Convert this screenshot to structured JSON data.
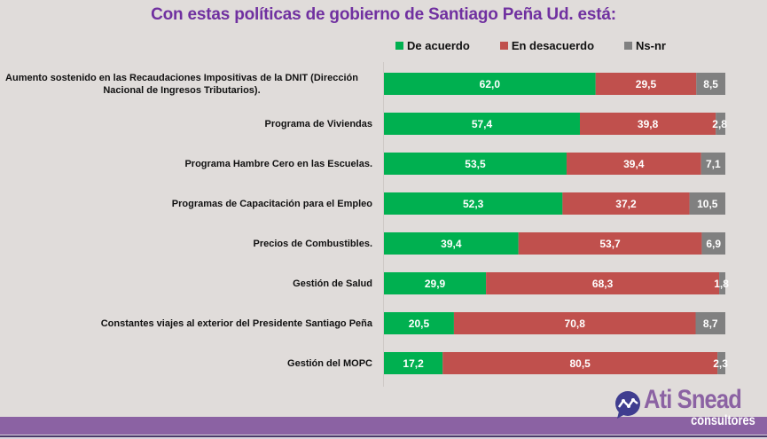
{
  "chart_data": {
    "type": "bar",
    "orientation": "horizontal",
    "stacked": true,
    "title": "Con estas políticas de gobierno de Santiago Peña Ud. está:",
    "xlabel": "",
    "ylabel": "",
    "xlim": [
      0,
      100
    ],
    "grid": false,
    "legend_position": "top",
    "categories": [
      "Aumento sostenido en las Recaudaciones Impositivas de la DNIT (Dirección Nacional de Ingresos Tributarios).",
      "Programa de Viviendas",
      "Programa Hambre Cero en las Escuelas.",
      "Programas de Capacitación para el Empleo",
      "Precios de Combustibles.",
      "Gestión de Salud",
      "Constantes viajes al exterior del Presidente Santiago Peña",
      "Gestión del MOPC"
    ],
    "category_lines": [
      [
        "Aumento sostenido en las Recaudaciones Impositivas de la DNIT (Dirección",
        "Nacional de Ingresos Tributarios)."
      ],
      [
        "Programa de Viviendas"
      ],
      [
        "Programa Hambre Cero en las Escuelas."
      ],
      [
        "Programas de Capacitación para el Empleo"
      ],
      [
        "Precios de Combustibles."
      ],
      [
        "Gestión de Salud"
      ],
      [
        "Constantes viajes al exterior del Presidente Santiago Peña"
      ],
      [
        "Gestión del MOPC"
      ]
    ],
    "series": [
      {
        "name": "De acuerdo",
        "color": "#00b050",
        "values": [
          62.0,
          57.4,
          53.5,
          52.3,
          39.4,
          29.9,
          20.5,
          17.2
        ],
        "labels": [
          "62,0",
          "57,4",
          "53,5",
          "52,3",
          "39,4",
          "29,9",
          "20,5",
          "17,2"
        ]
      },
      {
        "name": "En desacuerdo",
        "color": "#c0504d",
        "values": [
          29.5,
          39.8,
          39.4,
          37.2,
          53.7,
          68.3,
          70.8,
          80.5
        ],
        "labels": [
          "29,5",
          "39,8",
          "39,4",
          "37,2",
          "53,7",
          "68,3",
          "70,8",
          "80,5"
        ]
      },
      {
        "name": "Ns-nr",
        "color": "#808080",
        "values": [
          8.5,
          2.8,
          7.1,
          10.5,
          6.9,
          1.8,
          8.7,
          2.3
        ],
        "labels": [
          "8,5",
          "2,8",
          "7,1",
          "10,5",
          "6,9",
          "1,8",
          "8,7",
          "2,3"
        ]
      }
    ]
  },
  "branding": {
    "logo_name": "Ati Snead",
    "logo_sub": "consultores",
    "accent_color": "#8b62a3",
    "title_color": "#7030a0"
  }
}
